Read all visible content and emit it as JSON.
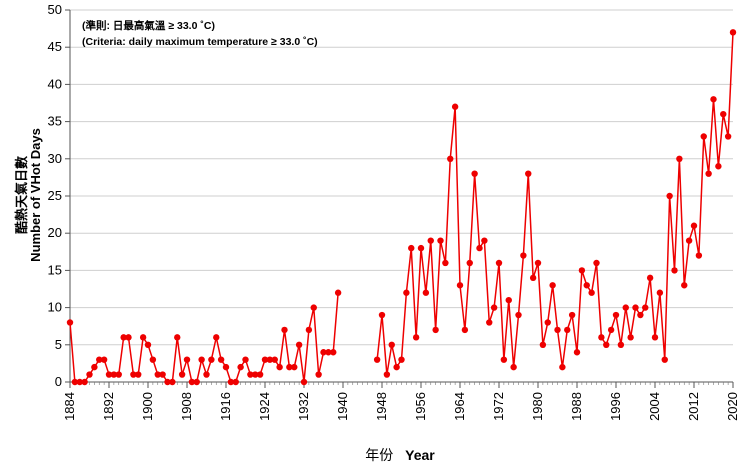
{
  "chart_data": {
    "type": "line",
    "title": "",
    "annotations": [
      "(準則: 日最高氣溫 ≥ 33.0 ˚C)",
      "(Criteria: daily maximum temperature ≥ 33.0 ˚C)"
    ],
    "ylabel_zh": "酷熱天氣日數",
    "ylabel_en": "Number of VHot Days",
    "xlabel_zh": "年份",
    "xlabel_en": "Year",
    "ylim": [
      0,
      50
    ],
    "yticks": [
      0,
      5,
      10,
      15,
      20,
      25,
      30,
      35,
      40,
      45,
      50
    ],
    "xlim": [
      1884,
      2020
    ],
    "xticks": [
      1884,
      1892,
      1900,
      1908,
      1916,
      1924,
      1932,
      1940,
      1948,
      1956,
      1964,
      1972,
      1980,
      1988,
      1996,
      2004,
      2012,
      2020
    ],
    "grid": true,
    "line_color": "#ee0000",
    "marker": "filled-circle",
    "series": [
      {
        "x": [
          1884,
          1885,
          1886,
          1887,
          1888,
          1889,
          1890,
          1891,
          1892,
          1893,
          1894,
          1895,
          1896,
          1897,
          1898,
          1899,
          1900,
          1901,
          1902,
          1903,
          1904,
          1905,
          1906,
          1907,
          1908,
          1909,
          1910,
          1911,
          1912,
          1913,
          1914,
          1915,
          1916,
          1917,
          1918,
          1919,
          1920,
          1921,
          1922,
          1923,
          1924,
          1925,
          1926,
          1927,
          1928,
          1929,
          1930,
          1931,
          1932,
          1933,
          1934,
          1935,
          1936,
          1937,
          1938,
          1939
        ],
        "values": [
          8,
          0,
          0,
          0,
          1,
          2,
          3,
          3,
          1,
          1,
          1,
          6,
          6,
          1,
          1,
          6,
          5,
          3,
          1,
          1,
          0,
          0,
          6,
          1,
          3,
          0,
          0,
          3,
          1,
          3,
          6,
          3,
          2,
          0,
          0,
          2,
          3,
          1,
          1,
          1,
          3,
          3,
          3,
          2,
          7,
          2,
          2,
          5,
          0,
          7,
          10,
          1,
          4,
          4,
          4,
          12
        ]
      },
      {
        "x": [
          1947,
          1948,
          1949,
          1950,
          1951,
          1952,
          1953,
          1954,
          1955,
          1956,
          1957,
          1958,
          1959,
          1960,
          1961,
          1962,
          1963,
          1964,
          1965,
          1966,
          1967,
          1968,
          1969,
          1970,
          1971,
          1972,
          1973,
          1974,
          1975,
          1976,
          1977,
          1978,
          1979,
          1980,
          1981,
          1982,
          1983,
          1984,
          1985,
          1986,
          1987,
          1988,
          1989,
          1990,
          1991,
          1992,
          1993,
          1994,
          1995,
          1996,
          1997,
          1998,
          1999,
          2000,
          2001,
          2002,
          2003,
          2004,
          2005,
          2006,
          2007,
          2008,
          2009,
          2010,
          2011,
          2012,
          2013,
          2014,
          2015,
          2016,
          2017,
          2018,
          2019,
          2020
        ],
        "values": [
          3,
          9,
          1,
          5,
          2,
          3,
          12,
          18,
          6,
          18,
          12,
          19,
          7,
          19,
          16,
          30,
          37,
          13,
          7,
          16,
          28,
          18,
          19,
          8,
          10,
          16,
          3,
          11,
          2,
          9,
          17,
          28,
          14,
          16,
          5,
          8,
          13,
          7,
          2,
          7,
          9,
          4,
          15,
          13,
          12,
          16,
          6,
          5,
          7,
          9,
          5,
          10,
          6,
          10,
          9,
          10,
          14,
          6,
          12,
          3,
          25,
          15,
          30,
          13,
          19,
          21,
          17,
          33,
          28,
          38,
          29,
          36,
          33,
          47
        ]
      }
    ]
  }
}
